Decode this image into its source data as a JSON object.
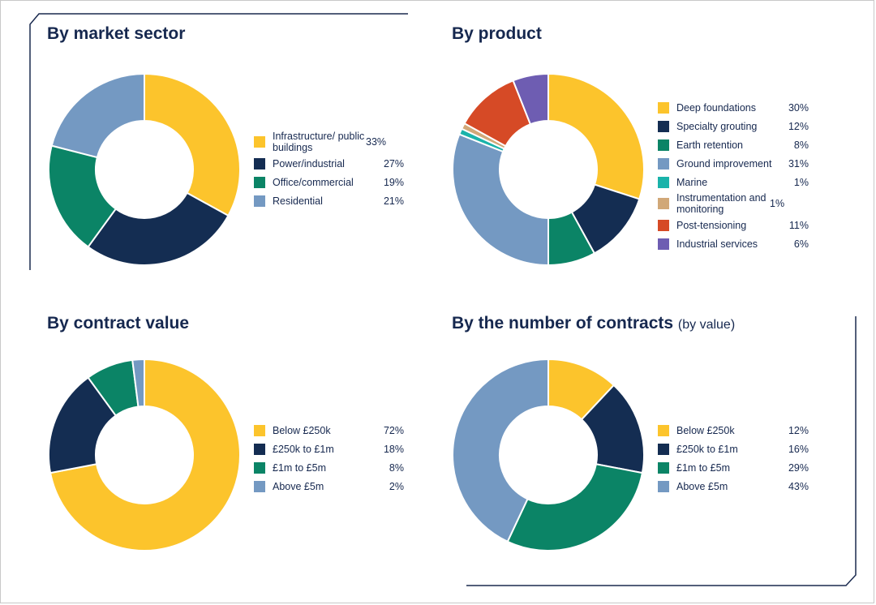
{
  "colors": {
    "yellow": "#fcc42c",
    "navy": "#142d52",
    "green": "#0b8466",
    "steel": "#7499c2",
    "teal": "#1ab3aa",
    "tan": "#d1a878",
    "red": "#d64a26",
    "purple": "#6e5db2",
    "title": "#16284f",
    "frame": "#1a2a4f"
  },
  "chart_data": [
    {
      "type": "pie",
      "title": "By market sector",
      "title_suffix": "",
      "legend_position": "right",
      "slices": [
        {
          "label": "Infrastructure/ public buildings",
          "value": 33,
          "display": "33%",
          "color": "#fcc42c"
        },
        {
          "label": "Power/industrial",
          "value": 27,
          "display": "27%",
          "color": "#142d52"
        },
        {
          "label": "Office/commercial",
          "value": 19,
          "display": "19%",
          "color": "#0b8466"
        },
        {
          "label": "Residential",
          "value": 21,
          "display": "21%",
          "color": "#7499c2"
        }
      ]
    },
    {
      "type": "pie",
      "title": "By product",
      "title_suffix": "",
      "legend_position": "right",
      "slices": [
        {
          "label": "Deep foundations",
          "value": 30,
          "display": "30%",
          "color": "#fcc42c"
        },
        {
          "label": "Specialty grouting",
          "value": 12,
          "display": "12%",
          "color": "#142d52"
        },
        {
          "label": "Earth retention",
          "value": 8,
          "display": "8%",
          "color": "#0b8466"
        },
        {
          "label": "Ground improvement",
          "value": 31,
          "display": "31%",
          "color": "#7499c2"
        },
        {
          "label": "Marine",
          "value": 1,
          "display": "1%",
          "color": "#1ab3aa"
        },
        {
          "label": "Instrumentation and monitoring",
          "value": 1,
          "display": "1%",
          "color": "#d1a878"
        },
        {
          "label": "Post-tensioning",
          "value": 11,
          "display": "11%",
          "color": "#d64a26"
        },
        {
          "label": "Industrial services",
          "value": 6,
          "display": "6%",
          "color": "#6e5db2"
        }
      ]
    },
    {
      "type": "pie",
      "title": "By contract value",
      "title_suffix": "",
      "legend_position": "right",
      "slices": [
        {
          "label": "Below £250k",
          "value": 72,
          "display": "72%",
          "color": "#fcc42c"
        },
        {
          "label": "£250k to £1m",
          "value": 18,
          "display": "18%",
          "color": "#142d52"
        },
        {
          "label": "£1m to £5m",
          "value": 8,
          "display": "8%",
          "color": "#0b8466"
        },
        {
          "label": "Above £5m",
          "value": 2,
          "display": "2%",
          "color": "#7499c2"
        }
      ]
    },
    {
      "type": "pie",
      "title": "By the number of contracts",
      "title_suffix": "(by value)",
      "legend_position": "right",
      "slices": [
        {
          "label": "Below £250k",
          "value": 12,
          "display": "12%",
          "color": "#fcc42c"
        },
        {
          "label": "£250k to £1m",
          "value": 16,
          "display": "16%",
          "color": "#142d52"
        },
        {
          "label": "£1m to £5m",
          "value": 29,
          "display": "29%",
          "color": "#0b8466"
        },
        {
          "label": "Above £5m",
          "value": 43,
          "display": "43%",
          "color": "#7499c2"
        }
      ]
    }
  ]
}
